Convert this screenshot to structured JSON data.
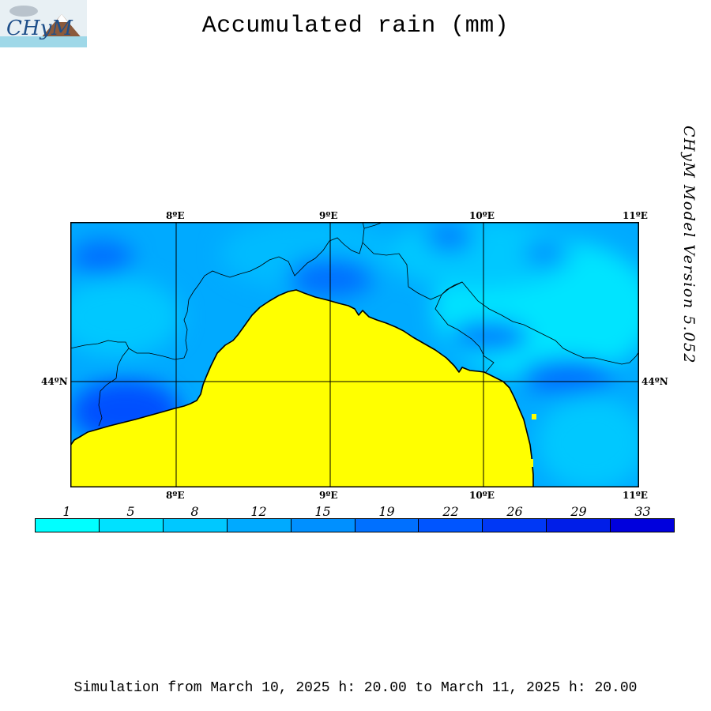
{
  "header": {
    "title": "Accumulated rain (mm)",
    "logo_text": "CHyM"
  },
  "side_label": "CHyM Model Version 5.052",
  "map": {
    "top_lon_labels": [
      "8ºE",
      "9ºE",
      "10ºE",
      "11ºE"
    ],
    "bottom_lon_labels": [
      "8ºE",
      "9ºE",
      "10ºE",
      "11ºE"
    ],
    "lat_label_left": "44ºN",
    "lat_label_right": "44ºN",
    "lon_range": [
      7.33,
      11.0
    ],
    "lat_range": [
      43.35,
      44.53
    ],
    "grid_lons": [
      8,
      9,
      10,
      11
    ],
    "grid_lats": [
      44
    ],
    "colors": {
      "sea": "#ffff00",
      "land_base": "#00aaff",
      "coast": "#000000",
      "border": "#000000"
    }
  },
  "legend": {
    "labels": [
      "1",
      "5",
      "8",
      "12",
      "15",
      "19",
      "22",
      "26",
      "29",
      "33"
    ],
    "colors": [
      "#00ffff",
      "#00e1ff",
      "#00c8ff",
      "#00aaff",
      "#0090ff",
      "#0070ff",
      "#0055ff",
      "#0038f5",
      "#001ee8",
      "#0000dd"
    ]
  },
  "footer": {
    "simulation_text": "Simulation from March 10, 2025 h: 20.00 to March 11, 2025 h: 20.00"
  }
}
